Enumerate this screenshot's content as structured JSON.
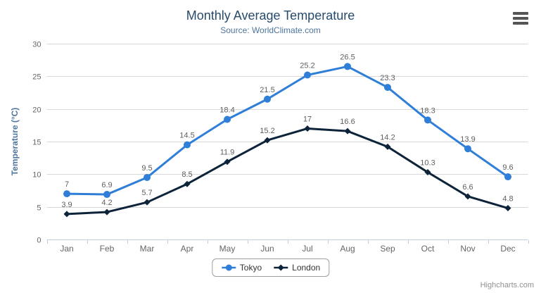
{
  "chart_data": {
    "type": "line",
    "title": "Monthly Average Temperature",
    "subtitle": "Source: WorldClimate.com",
    "categories": [
      "Jan",
      "Feb",
      "Mar",
      "Apr",
      "May",
      "Jun",
      "Jul",
      "Aug",
      "Sep",
      "Oct",
      "Nov",
      "Dec"
    ],
    "series": [
      {
        "name": "Tokyo",
        "marker": "circle",
        "color": "#2f7ed8",
        "values": [
          7,
          6.9,
          9.5,
          14.5,
          18.4,
          21.5,
          25.2,
          26.5,
          23.3,
          18.3,
          13.9,
          9.6
        ]
      },
      {
        "name": "London",
        "marker": "diamond",
        "color": "#0d233a",
        "values": [
          3.9,
          4.2,
          5.7,
          8.5,
          11.9,
          15.2,
          17,
          16.6,
          14.2,
          10.3,
          6.6,
          4.8
        ]
      }
    ],
    "xlabel": "",
    "ylabel": "Temperature (°C)",
    "ylim": [
      0,
      30
    ],
    "ytick_interval": 5,
    "grid": true,
    "data_labels": true,
    "legend_position": "bottom"
  },
  "toolbar": {
    "menu_icon": "hamburger-menu"
  },
  "credits": {
    "label": "Highcharts.com"
  },
  "colors": {
    "title": "#274b6d",
    "subtitle": "#4d759e",
    "axis_title": "#4d759e",
    "tick_label": "#666666",
    "data_label": "#606060",
    "grid": "#d8d8d8",
    "axis_line": "#c0d0e0",
    "legend_border": "#a0a0a0",
    "legend_text": "#333333",
    "credits_text": "#909090",
    "menu_bars": "#555555"
  }
}
